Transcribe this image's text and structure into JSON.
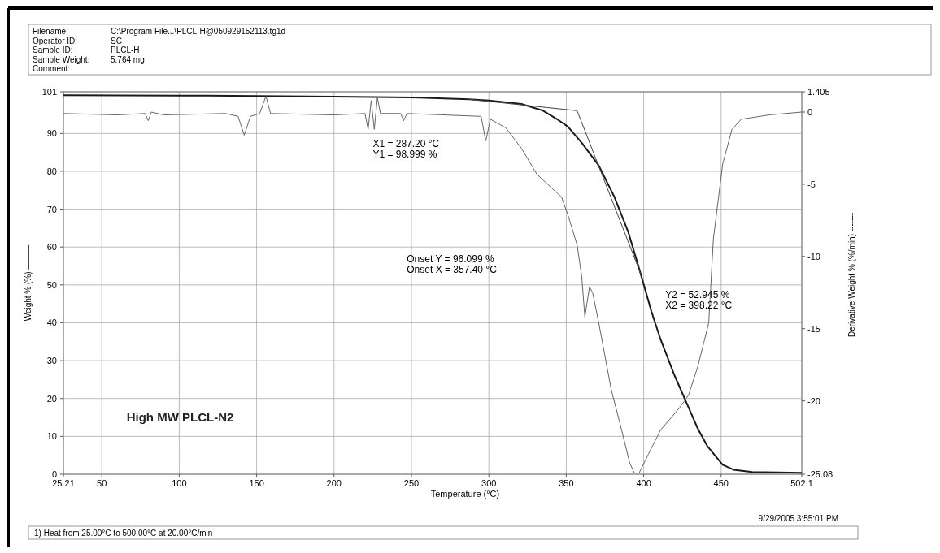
{
  "chart_data": {
    "type": "line",
    "title": "High MW PLCL-N2",
    "xlabel": "Temperature (°C)",
    "ylabel": "Weight % (%) ———",
    "y2label": "Derivative Weight % (%/min) -------",
    "xlim": [
      25.21,
      502.1
    ],
    "xticks": [
      25.21,
      50,
      100,
      150,
      200,
      250,
      300,
      350,
      400,
      450,
      502.1
    ],
    "ylim": [
      0,
      101
    ],
    "yticks": [
      0,
      10,
      20,
      30,
      40,
      50,
      60,
      70,
      80,
      90,
      101
    ],
    "y2lim": [
      -25.08,
      1.405
    ],
    "y2ticks": [
      -25.08,
      -20,
      -15,
      -10,
      -5,
      0,
      1.405
    ],
    "grid": true,
    "annotations": [
      "Filename:\tC:\\Program File...\\PLCL-H@050929152113.tg1d",
      "Operator ID:\tSC",
      "Sample ID:\tPLCL-H",
      "Sample Weight:\t5.764 mg",
      "Comment:",
      "X1 = 287.20 °C\nY1 = 98.999 %",
      "Onset Y = 96.099 %\nOnset X = 357.40 °C",
      "Y2 = 52.945 %\nX2 = 398.22 °C",
      "9/29/2005 3:55:01 PM",
      "1)  Heat from 25.00°C to 500.00°C at 20.00°C/min"
    ],
    "series": [
      {
        "color": "#1a1a1a",
        "x": [
          25.21,
          100,
          150,
          200,
          250,
          287.2,
          300,
          321,
          335,
          345,
          351,
          360,
          371,
          381,
          390,
          398,
          405,
          411,
          420,
          427,
          435,
          441,
          451,
          458,
          470,
          502.1
        ],
        "values": [
          100.1,
          100.0,
          99.9,
          99.7,
          99.5,
          99.0,
          98.7,
          97.8,
          96,
          93.5,
          91.8,
          87.5,
          81.5,
          73.3,
          64,
          53,
          43,
          35.5,
          26,
          19.5,
          12,
          7.5,
          2.5,
          1.2,
          0.6,
          0.4
        ]
      },
      {
        "color": "#444444",
        "x": [
          287,
          357,
          398
        ],
        "values": [
          99,
          96,
          53
        ]
      },
      {
        "color": "#666666",
        "axis": "y2",
        "x": [
          25.21,
          60,
          78,
          80,
          82,
          90,
          130,
          138,
          142,
          146,
          152,
          156,
          159,
          200,
          220,
          222,
          224,
          226,
          228,
          230,
          243,
          245,
          247,
          271,
          295,
          298,
          301,
          311,
          321,
          331,
          341,
          347,
          351,
          357,
          360,
          362,
          365,
          367,
          371,
          379,
          385,
          391,
          394,
          397,
          403,
          411,
          423,
          429,
          435,
          439,
          442,
          445,
          451,
          457,
          463,
          481,
          502.1
        ],
        "values": [
          -0.1,
          -0.2,
          -0.1,
          -0.6,
          0.0,
          -0.2,
          -0.1,
          -0.3,
          -1.6,
          -0.3,
          -0.1,
          1.1,
          -0.1,
          -0.2,
          -0.1,
          -1.2,
          0.8,
          -1.2,
          1.0,
          -0.1,
          -0.1,
          -0.6,
          -0.1,
          -0.2,
          -0.3,
          -2.0,
          -0.5,
          -1.1,
          -2.5,
          -4.3,
          -5.3,
          -5.9,
          -7.1,
          -9.2,
          -11.4,
          -14.2,
          -12.1,
          -12.5,
          -14.6,
          -19.2,
          -21.7,
          -24.3,
          -25.0,
          -25.0,
          -23.7,
          -22.0,
          -20.5,
          -19.6,
          -17.6,
          -15.9,
          -14.6,
          -8.8,
          -3.6,
          -1.2,
          -0.5,
          -0.2,
          0.0
        ]
      }
    ]
  }
}
